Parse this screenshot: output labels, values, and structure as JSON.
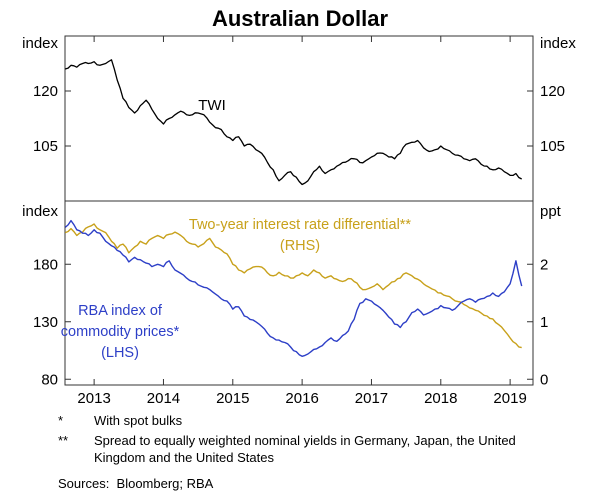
{
  "title": "Australian Dollar",
  "chart_data": [
    {
      "type": "line",
      "panel": "top",
      "ylabel_left": "index",
      "ylabel_right": "index",
      "ylim": [
        90,
        135
      ],
      "yticks": [
        105,
        120
      ],
      "xlim": [
        2012.58,
        2019.33
      ],
      "xticks": [
        2013,
        2014,
        2015,
        2016,
        2017,
        2018,
        2019
      ],
      "grid": false,
      "series": [
        {
          "id": "twi",
          "name": "TWI",
          "axis": "left",
          "color": "#000000",
          "x_start": 2012.5833,
          "x_step_months": 1,
          "values": [
            126,
            127,
            126.5,
            127.5,
            127.5,
            128,
            127,
            127.5,
            128.5,
            123,
            118,
            115.5,
            114,
            116,
            117.5,
            115,
            112.5,
            111,
            112.5,
            113.5,
            114.5,
            113.5,
            113.5,
            114,
            113.5,
            111.5,
            110,
            109.5,
            107.5,
            106.5,
            107.5,
            105,
            105.5,
            104,
            103,
            100.5,
            98.5,
            95.5,
            97,
            98,
            96.5,
            94.5,
            95.5,
            98,
            99.5,
            97.5,
            98.5,
            99.5,
            100.5,
            101,
            101.5,
            100.5,
            101,
            102,
            103,
            103,
            102,
            101.5,
            103,
            105.5,
            106,
            106.5,
            104.5,
            103.5,
            104,
            105,
            104,
            103,
            102.5,
            101.5,
            101,
            101.5,
            100,
            99.5,
            98.5,
            99,
            98,
            97,
            97.5,
            96
          ]
        }
      ]
    },
    {
      "type": "line",
      "panel": "bottom",
      "ylabel_left": "index",
      "ylabel_right": "ppt",
      "ylim_left": [
        75,
        235
      ],
      "ylim_right": [
        -0.1,
        3.1
      ],
      "yticks_left": [
        80,
        130,
        180
      ],
      "yticks_right": [
        0,
        1,
        2
      ],
      "xlim": [
        2012.58,
        2019.33
      ],
      "xticks": [
        2013,
        2014,
        2015,
        2016,
        2017,
        2018,
        2019
      ],
      "grid": false,
      "series": [
        {
          "id": "rate-differential",
          "name": "Two-year interest rate differential** (RHS)",
          "axis": "right",
          "color": "#c8a11b",
          "x_start": 2012.5833,
          "x_step_months": 1,
          "values": [
            2.55,
            2.62,
            2.5,
            2.56,
            2.65,
            2.7,
            2.6,
            2.55,
            2.4,
            2.28,
            2.35,
            2.2,
            2.3,
            2.4,
            2.35,
            2.45,
            2.5,
            2.45,
            2.52,
            2.56,
            2.5,
            2.4,
            2.35,
            2.3,
            2.36,
            2.45,
            2.3,
            2.25,
            2.18,
            2.0,
            1.9,
            1.85,
            1.92,
            1.96,
            1.95,
            1.85,
            1.8,
            1.86,
            1.8,
            1.76,
            1.8,
            1.85,
            1.8,
            1.9,
            1.85,
            1.76,
            1.8,
            1.74,
            1.7,
            1.75,
            1.7,
            1.6,
            1.56,
            1.6,
            1.66,
            1.56,
            1.64,
            1.7,
            1.76,
            1.85,
            1.8,
            1.74,
            1.66,
            1.6,
            1.55,
            1.5,
            1.45,
            1.4,
            1.35,
            1.3,
            1.24,
            1.2,
            1.15,
            1.1,
            1.05,
            0.95,
            0.85,
            0.72,
            0.62,
            0.55
          ]
        },
        {
          "id": "commodity-index",
          "name": "RBA index of commodity prices* (LHS)",
          "axis": "left",
          "color": "#2d3fc7",
          "x_start": 2012.5833,
          "x_step_months": 1,
          "values": [
            212,
            218,
            210,
            207,
            205,
            210,
            207,
            200,
            196,
            192,
            188,
            182,
            186,
            184,
            181,
            178,
            180,
            178,
            183,
            175,
            172,
            168,
            165,
            162,
            160,
            158,
            154,
            150,
            148,
            141,
            143,
            135,
            132,
            130,
            126,
            120,
            116,
            114,
            112,
            108,
            104,
            100,
            102,
            106,
            108,
            112,
            116,
            113,
            118,
            122,
            132,
            146,
            150,
            148,
            144,
            140,
            134,
            128,
            125,
            130,
            138,
            141,
            136,
            138,
            141,
            144,
            142,
            140,
            144,
            148,
            150,
            147,
            150,
            152,
            155,
            152,
            156,
            163,
            183,
            161
          ]
        }
      ]
    }
  ],
  "annotations": [
    {
      "id": "twi",
      "text": "TWI",
      "color": "#000000"
    },
    {
      "id": "ratediff-1",
      "text": "Two-year interest rate differential**",
      "color": "#c8a11b"
    },
    {
      "id": "ratediff-2",
      "text": "(RHS)",
      "color": "#c8a11b"
    },
    {
      "id": "commodity-1",
      "text": "RBA index of",
      "color": "#2d3fc7"
    },
    {
      "id": "commodity-2",
      "text": "commodity prices*",
      "color": "#2d3fc7"
    },
    {
      "id": "commodity-3",
      "text": "(LHS)",
      "color": "#2d3fc7"
    }
  ],
  "footnotes": [
    {
      "marker": "*",
      "text": "With spot bulks"
    },
    {
      "marker": "**",
      "text": "Spread to equally weighted nominal yields in Germany, Japan, the United Kingdom and the United States"
    }
  ],
  "sources": "Sources:  Bloomberg; RBA"
}
